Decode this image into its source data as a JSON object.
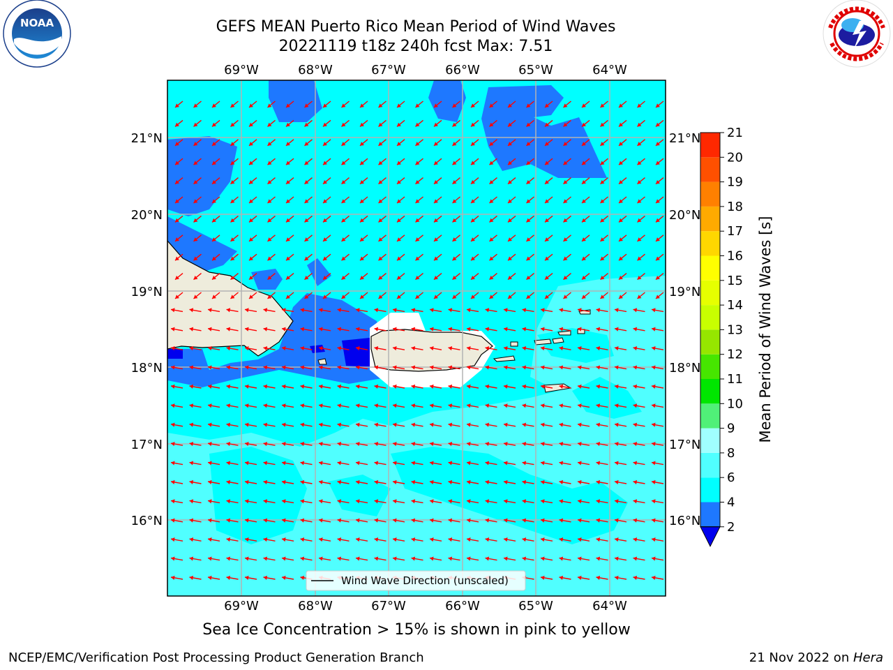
{
  "header": {
    "title_line1": "GEFS MEAN Puerto Rico Mean Period of Wind Waves",
    "title_line2": "20221119 t18z 240h fcst   Max: 7.51"
  },
  "logos": {
    "left": {
      "name": "noaa-logo",
      "text": "NOAA",
      "ring_text": "NATIONAL OCEANIC AND ATMOSPHERIC ADMINISTRATION · U.S. DEPARTMENT OF COMMERCE"
    },
    "right": {
      "name": "nws-logo",
      "ring_text": "NATIONAL WEATHER SERVICE"
    }
  },
  "map": {
    "lon_labels": [
      "69°W",
      "68°W",
      "67°W",
      "66°W",
      "65°W",
      "64°W"
    ],
    "lat_labels": [
      "21°N",
      "20°N",
      "19°N",
      "18°N",
      "17°N",
      "16°N"
    ],
    "legend": "Wind Wave Direction (unscaled)",
    "land_color": "#eeecdc",
    "arrow_color": "#ff0000",
    "contour_colors": {
      "lt2": "#0000ee",
      "2_4": "#1e78ff",
      "4_6": "#00ffff",
      "6_8": "#50ffff"
    }
  },
  "colorbar": {
    "label": "Mean Period of Wind Waves [s]",
    "ticks": [
      "2",
      "4",
      "6",
      "8",
      "9",
      "10",
      "11",
      "12",
      "13",
      "14",
      "15",
      "16",
      "17",
      "18",
      "19",
      "20",
      "21"
    ],
    "colors": [
      "#1e78ff",
      "#00ffff",
      "#50ffff",
      "#a0ffff",
      "#50f078",
      "#00e600",
      "#46e600",
      "#96e600",
      "#c8ff00",
      "#e6ff00",
      "#ffff00",
      "#ffd700",
      "#ffaa00",
      "#ff8000",
      "#ff5000",
      "#ff2800",
      "#ff0000"
    ],
    "under_color": "#0000ee"
  },
  "subtitle": "Sea Ice Concentration > 15% is shown in pink to yellow",
  "footer": {
    "left": "NCEP/EMC/Verification Post Processing Product Generation Branch",
    "date": "21 Nov 2022 on ",
    "host": "Hera"
  }
}
